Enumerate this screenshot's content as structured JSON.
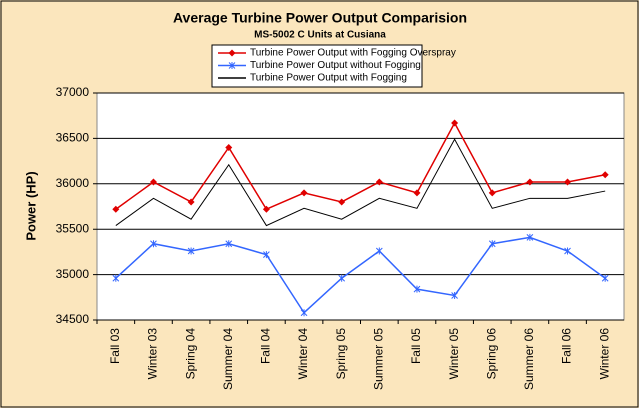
{
  "chart_data": {
    "type": "line",
    "title": "Average Turbine Power Output Comparision",
    "subtitle": "MS-5002 C Units at Cusiana",
    "y_label": "Power (HP)",
    "categories": [
      "Fall 03",
      "Winter 03",
      "Spring 04",
      "Summer 04",
      "Fall 04",
      "Winter 04",
      "Spring 05",
      "Summer 05",
      "Fall 05",
      "Winter 05",
      "Spring 06",
      "Summer 06",
      "Fall 06",
      "Winter 06"
    ],
    "series": [
      {
        "name": "Turbine Power Output with Fogging Overspray",
        "color": "#e00000",
        "marker": "diamond",
        "values": [
          35720,
          36020,
          35800,
          36400,
          35720,
          35900,
          35800,
          36020,
          35900,
          36670,
          35900,
          36020,
          36020,
          36100
        ]
      },
      {
        "name": "Turbine Power Output without Fogging",
        "color": "#3366ff",
        "marker": "star",
        "values": [
          34960,
          35340,
          35260,
          35340,
          35220,
          34580,
          34960,
          35260,
          34840,
          34770,
          35340,
          35410,
          35260,
          34960
        ]
      },
      {
        "name": "Turbine Power Output with Fogging",
        "color": "#000000",
        "marker": "none",
        "values": [
          35540,
          35840,
          35610,
          36210,
          35540,
          35730,
          35610,
          35840,
          35730,
          36490,
          35730,
          35840,
          35840,
          35920
        ]
      }
    ],
    "ylim": [
      34500,
      37000
    ],
    "yticks": [
      34500,
      35000,
      35500,
      36000,
      36500,
      37000
    ],
    "grid": true
  }
}
